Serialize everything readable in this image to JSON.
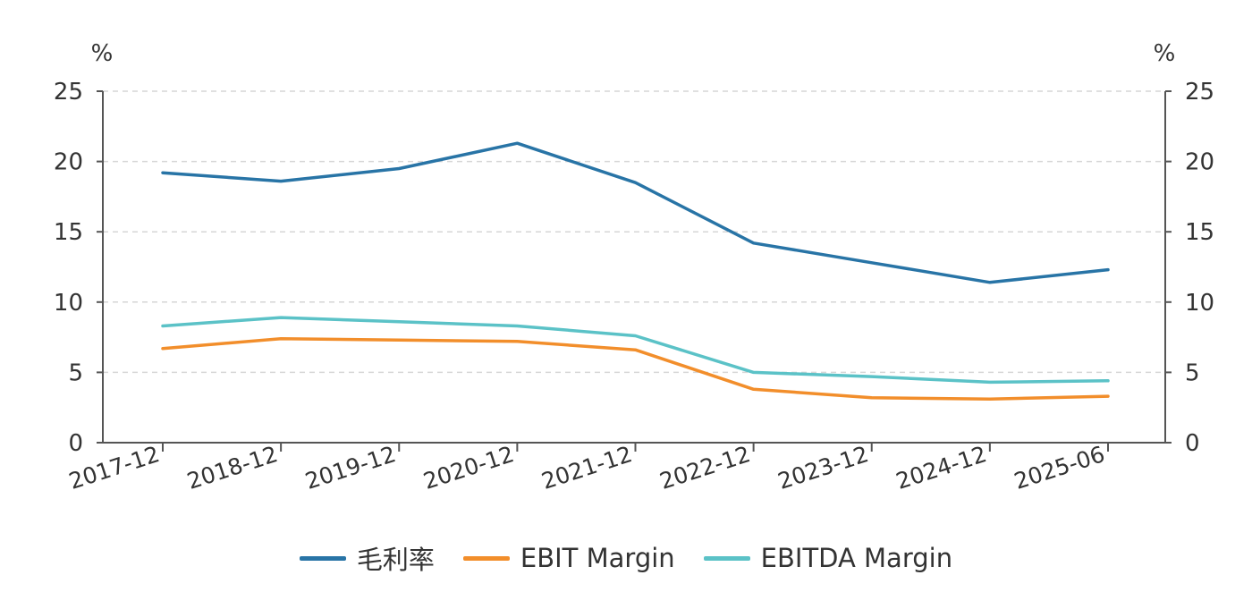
{
  "chart_data": {
    "type": "line",
    "categories": [
      "2017-12",
      "2018-12",
      "2019-12",
      "2020-12",
      "2021-12",
      "2022-12",
      "2023-12",
      "2024-12",
      "2025-06"
    ],
    "series": [
      {
        "name": "毛利率",
        "color": "#2874a6",
        "values": [
          19.2,
          18.6,
          19.5,
          21.3,
          18.5,
          14.2,
          12.8,
          11.4,
          12.3
        ]
      },
      {
        "name": "EBIT Margin",
        "color": "#f28e2b",
        "values": [
          6.7,
          7.4,
          7.3,
          7.2,
          6.6,
          3.8,
          3.2,
          3.1,
          3.3
        ]
      },
      {
        "name": "EBITDA Margin",
        "color": "#5bc2c7",
        "values": [
          8.3,
          8.9,
          8.6,
          8.3,
          7.6,
          5.0,
          4.7,
          4.3,
          4.4
        ]
      }
    ],
    "yticks": [
      "0",
      "5",
      "10",
      "15",
      "20",
      "25"
    ],
    "ylim": [
      0,
      25
    ],
    "ylabel_left": "%",
    "ylabel_right": "%",
    "grid": "dashed horizontal",
    "legend_position": "bottom-center",
    "colors": {
      "axis": "#555555",
      "grid": "#d6d6d6"
    }
  }
}
